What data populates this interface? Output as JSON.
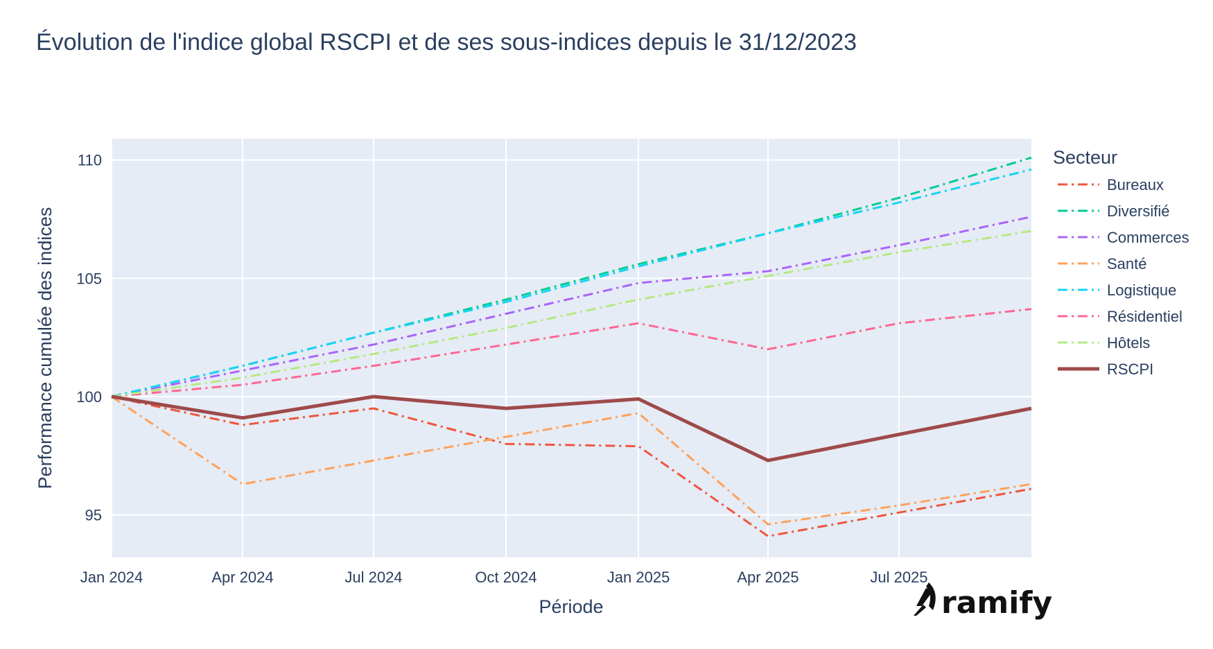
{
  "chart_data": {
    "type": "line",
    "title": "Évolution de l'indice global RSCPI et de ses sous-indices depuis le 31/12/2023",
    "xlabel": "Période",
    "ylabel": "Performance cumulée des indices",
    "legend_title": "Secteur",
    "legend_position": "right",
    "grid": true,
    "background": "#e5ecf6",
    "x_range": [
      "2024-01-01",
      "2025-10-01"
    ],
    "ylim": [
      93.2,
      110.9
    ],
    "x_ticks": [
      {
        "date": "2024-01-01",
        "label": "Jan 2024"
      },
      {
        "date": "2024-04-01",
        "label": "Apr 2024"
      },
      {
        "date": "2024-07-01",
        "label": "Jul 2024"
      },
      {
        "date": "2024-10-01",
        "label": "Oct 2024"
      },
      {
        "date": "2025-01-01",
        "label": "Jan 2025"
      },
      {
        "date": "2025-04-01",
        "label": "Apr 2025"
      },
      {
        "date": "2025-07-01",
        "label": "Jul 2025"
      }
    ],
    "y_ticks": [
      {
        "value": 95,
        "label": "95"
      },
      {
        "value": 100,
        "label": "100"
      },
      {
        "value": 105,
        "label": "105"
      },
      {
        "value": 110,
        "label": "110"
      }
    ],
    "x": [
      "2024-01-01",
      "2024-04-01",
      "2024-07-01",
      "2024-10-01",
      "2025-01-01",
      "2025-04-01",
      "2025-07-01",
      "2025-10-01"
    ],
    "series": [
      {
        "name": "Bureaux",
        "color": "#ef553b",
        "dash": "dashdot",
        "values": [
          100,
          98.8,
          99.5,
          98.0,
          97.9,
          94.1,
          95.1,
          96.1
        ]
      },
      {
        "name": "Diversifié",
        "color": "#00cc96",
        "dash": "dashdot",
        "values": [
          100,
          101.3,
          102.7,
          104.1,
          105.6,
          106.9,
          108.4,
          110.1
        ]
      },
      {
        "name": "Commerces",
        "color": "#ab63fa",
        "dash": "dashdot",
        "values": [
          100,
          101.1,
          102.2,
          103.5,
          104.8,
          105.3,
          106.4,
          107.6
        ]
      },
      {
        "name": "Santé",
        "color": "#ffa15a",
        "dash": "dashdot",
        "values": [
          100,
          96.3,
          97.3,
          98.3,
          99.3,
          94.6,
          95.4,
          96.3
        ]
      },
      {
        "name": "Logistique",
        "color": "#19d3f3",
        "dash": "dashdot",
        "values": [
          100,
          101.3,
          102.7,
          104.0,
          105.5,
          106.9,
          108.2,
          109.6
        ]
      },
      {
        "name": "Résidentiel",
        "color": "#ff6692",
        "dash": "dashdot",
        "values": [
          100,
          100.5,
          101.3,
          102.2,
          103.1,
          102.0,
          103.1,
          103.7
        ]
      },
      {
        "name": "Hôtels",
        "color": "#b6e880",
        "dash": "dashdot",
        "values": [
          100,
          100.8,
          101.8,
          102.9,
          104.1,
          105.1,
          106.1,
          107.0
        ]
      },
      {
        "name": "RSCPI",
        "color": "#9e4a4a",
        "dash": "solid",
        "values": [
          100,
          99.1,
          100.0,
          99.5,
          99.9,
          97.3,
          98.4,
          99.5
        ]
      }
    ]
  },
  "logo": {
    "text": "ramify"
  }
}
